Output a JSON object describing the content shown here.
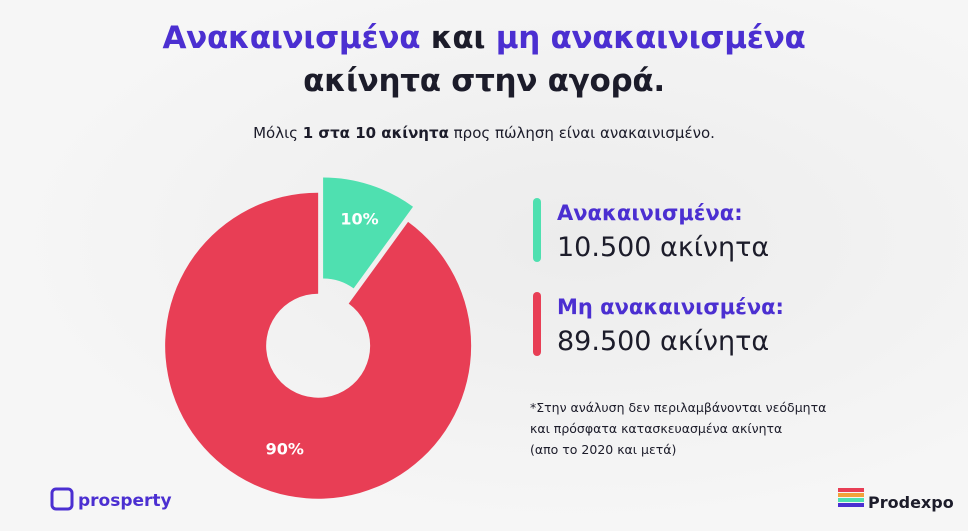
{
  "chart_data": {
    "type": "pie",
    "title_lines": [
      [
        {
          "text": "Ανακαινισμένα ",
          "color": "#4b2fd1"
        },
        {
          "text": "και ",
          "color": "#1c1c2a"
        },
        {
          "text": "μη ανακαινισμένα",
          "color": "#4b2fd1"
        }
      ],
      [
        {
          "text": "ακίνητα στην αγορά.",
          "color": "#1c1c2a"
        }
      ]
    ],
    "subtitle": [
      {
        "text": "Μόλις ",
        "bold": false
      },
      {
        "text": "1 στα 10 ακίνητα",
        "bold": true
      },
      {
        "text": " προς πώληση είναι ανακαινισμένο.",
        "bold": false
      }
    ],
    "categories": [
      "Ανακαινισμένα:",
      "Μη ανακαινισμένα:"
    ],
    "values": [
      10,
      90
    ],
    "value_labels": [
      "10%",
      "90%"
    ],
    "colors": [
      "#4fe0b0",
      "#e83e55"
    ],
    "legend_details": [
      "10.500 ακίνητα",
      "89.500 ακίνητα"
    ],
    "donut": true,
    "footnote": [
      "*Στην ανάλυση δεν περιλαμβάνονται νεόδμητα",
      "και πρόσφατα κατασκευασμένα ακίνητα",
      "(απο το 2020 και μετά)"
    ]
  },
  "logos": {
    "left": "prosperty",
    "right": "Prodexpo"
  }
}
